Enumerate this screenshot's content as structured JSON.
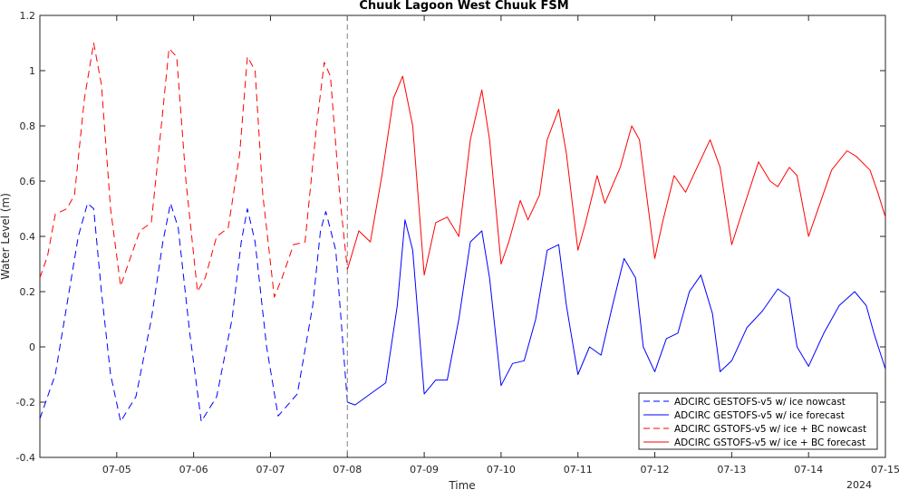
{
  "chart_data": {
    "type": "line",
    "title": "Chuuk Lagoon West Chuuk FSM",
    "xlabel": "Time",
    "ylabel": "Water Level (m)",
    "year_label": "2024",
    "xlim": [
      "07-04",
      "07-15"
    ],
    "ylim": [
      -0.4,
      1.2
    ],
    "x_ticks": [
      "07-05",
      "07-06",
      "07-07",
      "07-08",
      "07-09",
      "07-10",
      "07-11",
      "07-12",
      "07-13",
      "07-14",
      "07-15"
    ],
    "y_ticks": [
      "-0.4",
      "-0.2",
      "0",
      "0.2",
      "0.4",
      "0.6",
      "0.8",
      "1",
      "1.2"
    ],
    "nowcast_end": "07-08",
    "legend_position": "bottom-right",
    "colors": {
      "blue": "#0000ff",
      "red": "#ff0000",
      "divider": "#808080"
    },
    "series": [
      {
        "name": "ADCIRC GESTOFS-v5 w/ ice nowcast",
        "color": "#0000ff",
        "dash": "dashed",
        "x": [
          4.0,
          4.2,
          4.35,
          4.5,
          4.62,
          4.7,
          4.8,
          4.92,
          5.05,
          5.25,
          5.45,
          5.6,
          5.7,
          5.8,
          5.95,
          6.1,
          6.3,
          6.5,
          6.62,
          6.7,
          6.8,
          6.95,
          7.1,
          7.35,
          7.55,
          7.65,
          7.72,
          7.85,
          8.0
        ],
        "y": [
          -0.26,
          -0.1,
          0.15,
          0.4,
          0.52,
          0.5,
          0.2,
          -0.1,
          -0.27,
          -0.18,
          0.1,
          0.38,
          0.52,
          0.43,
          0.05,
          -0.27,
          -0.18,
          0.1,
          0.38,
          0.5,
          0.38,
          0.0,
          -0.25,
          -0.17,
          0.15,
          0.42,
          0.49,
          0.35,
          -0.2
        ]
      },
      {
        "name": "ADCIRC GESTOFS-v5 w/ ice forecast",
        "color": "#0000ff",
        "dash": "solid",
        "x": [
          8.0,
          8.1,
          8.3,
          8.5,
          8.65,
          8.75,
          8.85,
          9.0,
          9.15,
          9.3,
          9.45,
          9.6,
          9.75,
          9.85,
          10.0,
          10.15,
          10.3,
          10.45,
          10.6,
          10.75,
          10.85,
          11.0,
          11.15,
          11.3,
          11.45,
          11.6,
          11.75,
          11.85,
          12.0,
          12.15,
          12.3,
          12.45,
          12.6,
          12.75,
          12.85,
          13.0,
          13.2,
          13.4,
          13.6,
          13.75,
          13.85,
          14.0,
          14.2,
          14.4,
          14.6,
          14.75,
          14.85,
          15.0
        ],
        "y": [
          -0.2,
          -0.21,
          -0.17,
          -0.13,
          0.15,
          0.46,
          0.35,
          -0.17,
          -0.12,
          -0.12,
          0.1,
          0.38,
          0.42,
          0.25,
          -0.14,
          -0.06,
          -0.05,
          0.1,
          0.35,
          0.37,
          0.15,
          -0.1,
          -0.0,
          -0.03,
          0.15,
          0.32,
          0.25,
          0.0,
          -0.09,
          0.03,
          0.05,
          0.2,
          0.26,
          0.12,
          -0.09,
          -0.05,
          0.07,
          0.13,
          0.21,
          0.18,
          0.0,
          -0.07,
          0.05,
          0.15,
          0.2,
          0.15,
          0.05,
          -0.08
        ]
      },
      {
        "name": "ADCIRC GSTOFS-v5 w/ ice + BC nowcast",
        "color": "#ff0000",
        "dash": "dashed",
        "x": [
          4.0,
          4.1,
          4.2,
          4.35,
          4.45,
          4.58,
          4.7,
          4.8,
          4.92,
          5.05,
          5.15,
          5.3,
          5.45,
          5.58,
          5.68,
          5.78,
          5.9,
          6.05,
          6.15,
          6.3,
          6.45,
          6.6,
          6.7,
          6.8,
          6.9,
          7.05,
          7.15,
          7.3,
          7.45,
          7.6,
          7.7,
          7.78,
          7.9,
          8.0
        ],
        "y": [
          0.25,
          0.33,
          0.48,
          0.5,
          0.55,
          0.9,
          1.1,
          0.95,
          0.5,
          0.22,
          0.3,
          0.42,
          0.45,
          0.8,
          1.08,
          1.05,
          0.6,
          0.2,
          0.25,
          0.4,
          0.43,
          0.7,
          1.05,
          1.0,
          0.55,
          0.18,
          0.25,
          0.37,
          0.38,
          0.8,
          1.03,
          0.98,
          0.55,
          0.28
        ]
      },
      {
        "name": "ADCIRC GSTOFS-v5 w/ ice + BC forecast",
        "color": "#ff0000",
        "dash": "solid",
        "x": [
          8.0,
          8.15,
          8.3,
          8.45,
          8.6,
          8.72,
          8.85,
          9.0,
          9.15,
          9.3,
          9.45,
          9.6,
          9.75,
          9.85,
          10.0,
          10.1,
          10.25,
          10.35,
          10.5,
          10.6,
          10.75,
          10.85,
          11.0,
          11.1,
          11.25,
          11.35,
          11.55,
          11.7,
          11.8,
          12.0,
          12.1,
          12.25,
          12.4,
          12.55,
          12.72,
          12.85,
          13.0,
          13.15,
          13.35,
          13.5,
          13.6,
          13.75,
          13.85,
          14.0,
          14.15,
          14.3,
          14.5,
          14.62,
          14.8,
          14.9,
          15.0
        ],
        "y": [
          0.28,
          0.42,
          0.38,
          0.62,
          0.9,
          0.98,
          0.8,
          0.26,
          0.45,
          0.47,
          0.4,
          0.75,
          0.93,
          0.75,
          0.3,
          0.38,
          0.53,
          0.46,
          0.55,
          0.75,
          0.86,
          0.7,
          0.35,
          0.45,
          0.62,
          0.52,
          0.65,
          0.8,
          0.75,
          0.32,
          0.45,
          0.62,
          0.56,
          0.65,
          0.75,
          0.65,
          0.37,
          0.5,
          0.67,
          0.6,
          0.58,
          0.65,
          0.62,
          0.4,
          0.52,
          0.64,
          0.71,
          0.69,
          0.64,
          0.56,
          0.47
        ]
      }
    ]
  }
}
